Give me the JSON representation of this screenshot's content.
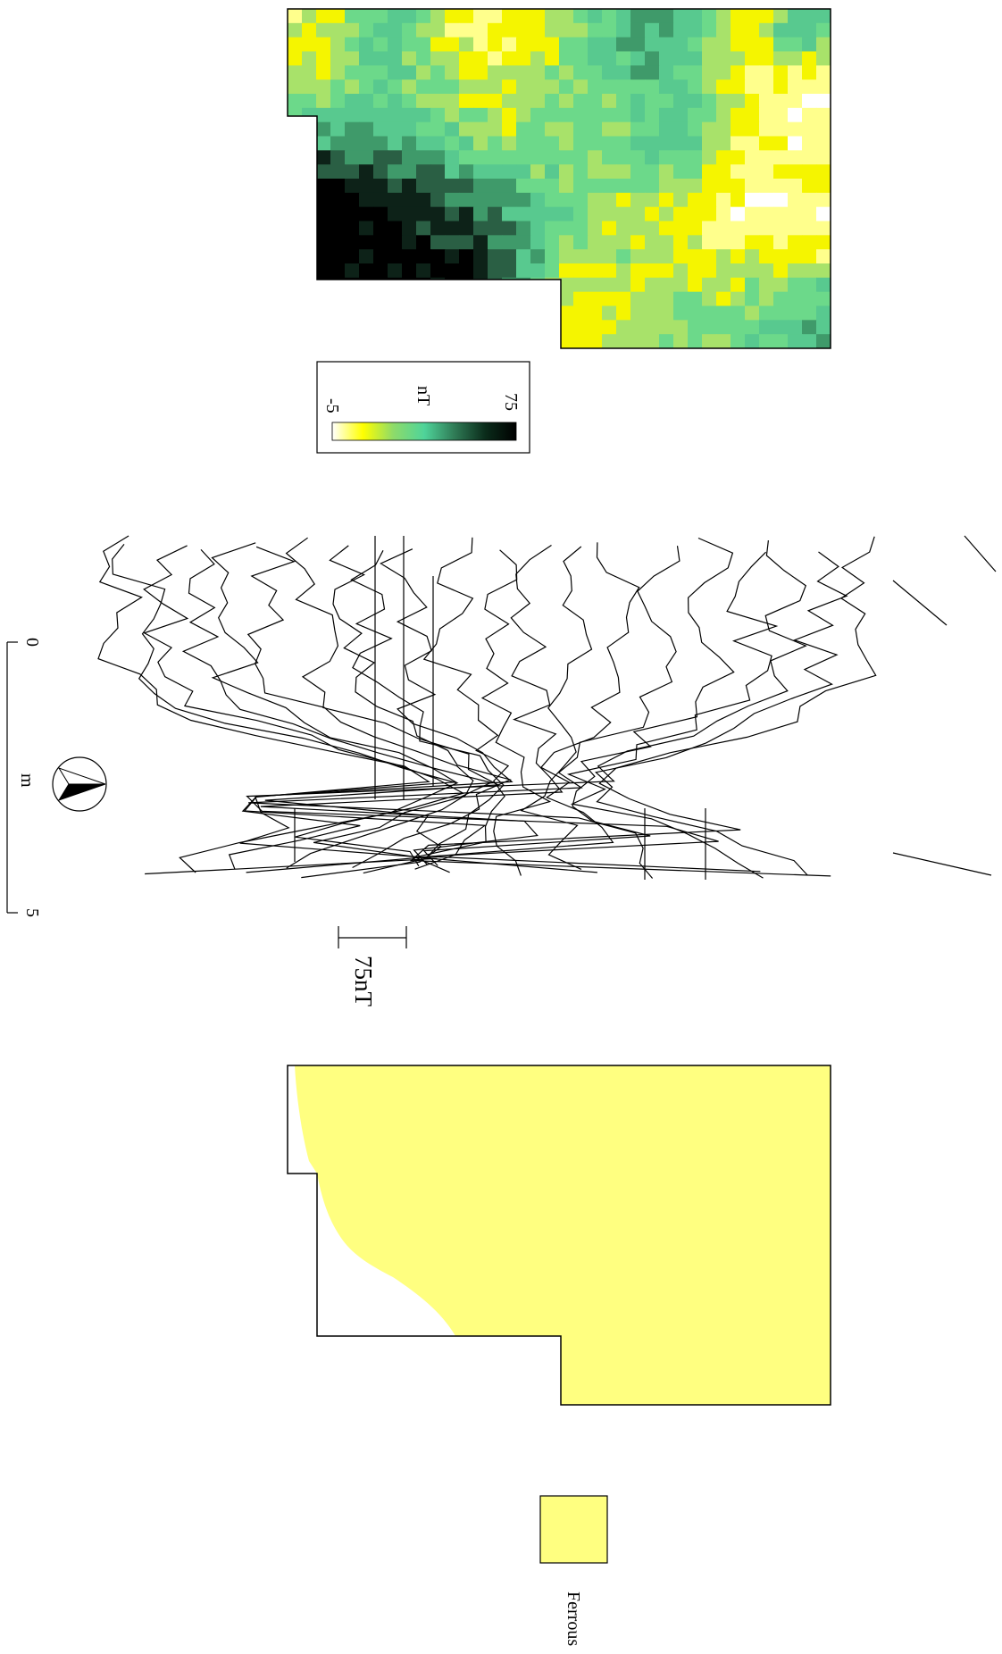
{
  "figure": {
    "colorbar": {
      "unit": "nT",
      "min_label": "-5",
      "max_label": "75",
      "gradient_colors": [
        "#ffffff",
        "#ffff00",
        "#8ddb6a",
        "#4fd49a",
        "#2f7a55",
        "#0a2b1a",
        "#000000"
      ]
    },
    "scale_bar": {
      "start_label": "0",
      "unit_label": "m",
      "end_label": "5"
    },
    "trace_scale": {
      "label": "75nT"
    },
    "legend": {
      "ferrous_label": "Ferrous",
      "ferrous_color": "#ffff80"
    },
    "north_arrow": {
      "icon": "north-arrow-icon"
    },
    "palette": {
      "white": "#ffffff",
      "pale_yellow": "#ffff8c",
      "yellow": "#f5f500",
      "light_green": "#a8e26a",
      "green": "#6cd98a",
      "teal": "#58c98f",
      "mid_green": "#3f9a6a",
      "dark_green": "#2a5f44",
      "very_dark": "#0d2218",
      "black": "#000000"
    }
  }
}
